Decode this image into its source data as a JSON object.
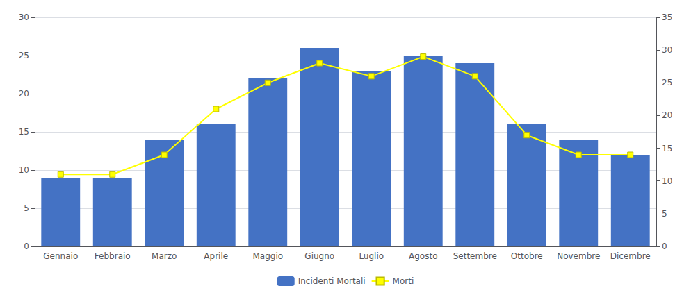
{
  "chart_data": {
    "type": "bar",
    "categories": [
      "Gennaio",
      "Febbraio",
      "Marzo",
      "Aprile",
      "Maggio",
      "Giugno",
      "Luglio",
      "Agosto",
      "Settembre",
      "Ottobre",
      "Novembre",
      "Dicembre"
    ],
    "series": [
      {
        "name": "Incidenti Mortali",
        "type": "bar",
        "color": "#4472C4",
        "values": [
          9,
          9,
          14,
          16,
          22,
          26,
          23,
          25,
          24,
          16,
          14,
          12
        ]
      },
      {
        "name": "Morti",
        "type": "line",
        "color": "#FFFF00",
        "marker": "square",
        "axis": "y2",
        "values": [
          11,
          11,
          14,
          21,
          25,
          28,
          26,
          29,
          26,
          17,
          14,
          14
        ]
      }
    ],
    "ylim": [
      0,
      30
    ],
    "yticks": [
      0,
      5,
      10,
      15,
      20,
      25,
      30
    ],
    "y2lim": [
      0,
      35
    ],
    "y2ticks": [
      0,
      5,
      10,
      15,
      20,
      25,
      30,
      35
    ],
    "grid": true,
    "legend": "bottom"
  }
}
